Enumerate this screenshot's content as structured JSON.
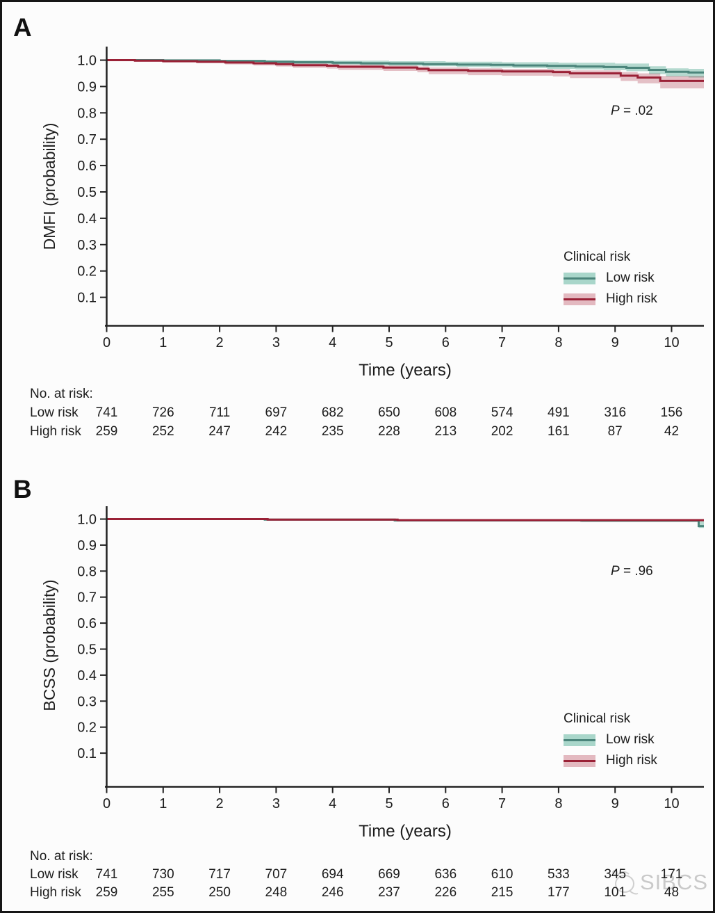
{
  "chart_data": [
    {
      "type": "line",
      "subtype": "kaplan-meier-step",
      "panel_label": "A",
      "xlabel": "Time (years)",
      "ylabel": "DMFI (probability)",
      "p_italic": "P",
      "p_rest": " = .02",
      "xlim": [
        0,
        10.57
      ],
      "ylim": [
        0,
        1.05
      ],
      "xticks": [
        "0",
        "1",
        "2",
        "3",
        "4",
        "5",
        "6",
        "7",
        "8",
        "9",
        "10"
      ],
      "yticks": [
        "1.0",
        "0.9",
        "0.8",
        "0.7",
        "0.6",
        "0.5",
        "0.4",
        "0.3",
        "0.2",
        "0.1"
      ],
      "grid": false,
      "legend": {
        "title": "Clinical risk",
        "position": "inside-lower-right",
        "items": [
          "Low risk",
          "High risk"
        ]
      },
      "series": [
        {
          "name": "Low risk",
          "line_color": "#4b857b",
          "band_color": "#a9d6ca",
          "steps": [
            [
              0,
              1.0
            ],
            [
              1.0,
              0.999
            ],
            [
              2.0,
              0.997
            ],
            [
              2.8,
              0.994
            ],
            [
              3.3,
              0.992
            ],
            [
              4.0,
              0.99
            ],
            [
              4.5,
              0.988
            ],
            [
              5.0,
              0.987
            ],
            [
              5.6,
              0.985
            ],
            [
              6.2,
              0.983
            ],
            [
              6.8,
              0.982
            ],
            [
              7.2,
              0.98
            ],
            [
              7.8,
              0.978
            ],
            [
              8.3,
              0.976
            ],
            [
              8.8,
              0.974
            ],
            [
              9.2,
              0.971
            ],
            [
              9.6,
              0.963
            ],
            [
              9.9,
              0.956
            ],
            [
              10.3,
              0.953
            ]
          ],
          "band_upper": [
            [
              0,
              1.0
            ],
            [
              3.0,
              0.999
            ],
            [
              4.0,
              0.998
            ],
            [
              5.0,
              0.996
            ],
            [
              6.0,
              0.994
            ],
            [
              7.0,
              0.992
            ],
            [
              8.0,
              0.99
            ],
            [
              9.0,
              0.987
            ],
            [
              9.6,
              0.977
            ],
            [
              9.9,
              0.969
            ],
            [
              10.3,
              0.967
            ]
          ],
          "band_lower": [
            [
              0,
              0.998
            ],
            [
              1.0,
              0.996
            ],
            [
              2.0,
              0.993
            ],
            [
              2.8,
              0.989
            ],
            [
              3.3,
              0.986
            ],
            [
              4.0,
              0.983
            ],
            [
              4.5,
              0.981
            ],
            [
              5.0,
              0.979
            ],
            [
              5.6,
              0.977
            ],
            [
              6.2,
              0.974
            ],
            [
              6.8,
              0.972
            ],
            [
              7.2,
              0.97
            ],
            [
              7.8,
              0.967
            ],
            [
              8.3,
              0.965
            ],
            [
              8.8,
              0.962
            ],
            [
              9.2,
              0.958
            ],
            [
              9.6,
              0.947
            ],
            [
              9.9,
              0.938
            ],
            [
              10.3,
              0.934
            ]
          ]
        },
        {
          "name": "High risk",
          "line_color": "#9a2136",
          "band_color": "#e3b9c0",
          "steps": [
            [
              0,
              1.0
            ],
            [
              0.5,
              0.998
            ],
            [
              1.0,
              0.996
            ],
            [
              1.6,
              0.994
            ],
            [
              2.1,
              0.991
            ],
            [
              2.6,
              0.988
            ],
            [
              3.0,
              0.985
            ],
            [
              3.3,
              0.981
            ],
            [
              3.9,
              0.979
            ],
            [
              4.1,
              0.975
            ],
            [
              4.9,
              0.972
            ],
            [
              5.5,
              0.967
            ],
            [
              5.7,
              0.962
            ],
            [
              6.4,
              0.959
            ],
            [
              7.0,
              0.957
            ],
            [
              7.9,
              0.955
            ],
            [
              8.2,
              0.95
            ],
            [
              9.1,
              0.941
            ],
            [
              9.4,
              0.934
            ],
            [
              9.8,
              0.921
            ]
          ],
          "band_upper": [
            [
              0,
              1.0
            ],
            [
              1.0,
              0.999
            ],
            [
              2.1,
              0.996
            ],
            [
              2.6,
              0.993
            ],
            [
              3.0,
              0.991
            ],
            [
              3.3,
              0.988
            ],
            [
              3.9,
              0.986
            ],
            [
              4.1,
              0.983
            ],
            [
              4.9,
              0.98
            ],
            [
              5.5,
              0.976
            ],
            [
              5.7,
              0.972
            ],
            [
              6.4,
              0.969
            ],
            [
              7.0,
              0.967
            ],
            [
              7.9,
              0.965
            ],
            [
              8.2,
              0.961
            ],
            [
              9.1,
              0.955
            ],
            [
              9.4,
              0.95
            ],
            [
              9.8,
              0.94
            ]
          ],
          "band_lower": [
            [
              0,
              0.997
            ],
            [
              0.5,
              0.994
            ],
            [
              1.0,
              0.991
            ],
            [
              1.6,
              0.988
            ],
            [
              2.1,
              0.984
            ],
            [
              2.6,
              0.98
            ],
            [
              3.0,
              0.976
            ],
            [
              3.3,
              0.971
            ],
            [
              3.9,
              0.968
            ],
            [
              4.1,
              0.963
            ],
            [
              4.9,
              0.959
            ],
            [
              5.5,
              0.954
            ],
            [
              5.7,
              0.947
            ],
            [
              6.4,
              0.943
            ],
            [
              7.0,
              0.941
            ],
            [
              7.9,
              0.938
            ],
            [
              8.2,
              0.932
            ],
            [
              9.1,
              0.921
            ],
            [
              9.4,
              0.912
            ],
            [
              9.8,
              0.893
            ]
          ]
        }
      ],
      "risk_table": {
        "header": "No. at risk:",
        "rows": [
          {
            "label": "Low risk",
            "counts": [
              741,
              726,
              711,
              697,
              682,
              650,
              608,
              574,
              491,
              316,
              156
            ]
          },
          {
            "label": "High risk",
            "counts": [
              259,
              252,
              247,
              242,
              235,
              228,
              213,
              202,
              161,
              87,
              42
            ]
          }
        ]
      }
    },
    {
      "type": "line",
      "subtype": "kaplan-meier-step",
      "panel_label": "B",
      "xlabel": "Time (years)",
      "ylabel": "BCSS (probability)",
      "p_italic": "P",
      "p_rest": " = .96",
      "xlim": [
        0,
        10.57
      ],
      "ylim": [
        0,
        1.05
      ],
      "xticks": [
        "0",
        "1",
        "2",
        "3",
        "4",
        "5",
        "6",
        "7",
        "8",
        "9",
        "10"
      ],
      "yticks": [
        "1.0",
        "0.9",
        "0.8",
        "0.7",
        "0.6",
        "0.5",
        "0.4",
        "0.3",
        "0.2",
        "0.1"
      ],
      "grid": false,
      "legend": {
        "title": "Clinical risk",
        "position": "inside-lower-right",
        "items": [
          "Low risk",
          "High risk"
        ]
      },
      "series": [
        {
          "name": "Low risk",
          "line_color": "#4b857b",
          "band_color": "#a9d6ca",
          "steps": [
            [
              0,
              1.0
            ],
            [
              2.8,
              0.998
            ],
            [
              5.1,
              0.995
            ],
            [
              8.4,
              0.994
            ],
            [
              10.48,
              0.973
            ]
          ],
          "band_upper": [
            [
              0,
              1.0
            ],
            [
              8.4,
              0.999
            ],
            [
              10.48,
              0.998
            ]
          ],
          "band_lower": [
            [
              0,
              0.999
            ],
            [
              2.8,
              0.995
            ],
            [
              5.1,
              0.991
            ],
            [
              8.4,
              0.989
            ],
            [
              10.48,
              0.966
            ]
          ]
        },
        {
          "name": "High risk",
          "line_color": "#9a2136",
          "band_color": "#e3b9c0",
          "steps": [
            [
              0,
              1.0
            ],
            [
              2.85,
              0.998
            ],
            [
              5.15,
              0.996
            ]
          ],
          "band_upper": [
            [
              0,
              1.0
            ],
            [
              5.15,
              0.999
            ]
          ],
          "band_lower": [
            [
              0,
              0.998
            ],
            [
              2.85,
              0.995
            ],
            [
              5.15,
              0.992
            ],
            [
              8.4,
              0.991
            ]
          ]
        }
      ],
      "risk_table": {
        "header": "No. at risk:",
        "rows": [
          {
            "label": "Low risk",
            "counts": [
              741,
              730,
              717,
              707,
              694,
              669,
              636,
              610,
              533,
              345,
              171
            ]
          },
          {
            "label": "High risk",
            "counts": [
              259,
              255,
              250,
              248,
              246,
              237,
              226,
              215,
              177,
              101,
              48
            ]
          }
        ]
      }
    }
  ],
  "watermark": {
    "text": "SIBCS",
    "logo": "sibcs-ribbon-logo"
  }
}
